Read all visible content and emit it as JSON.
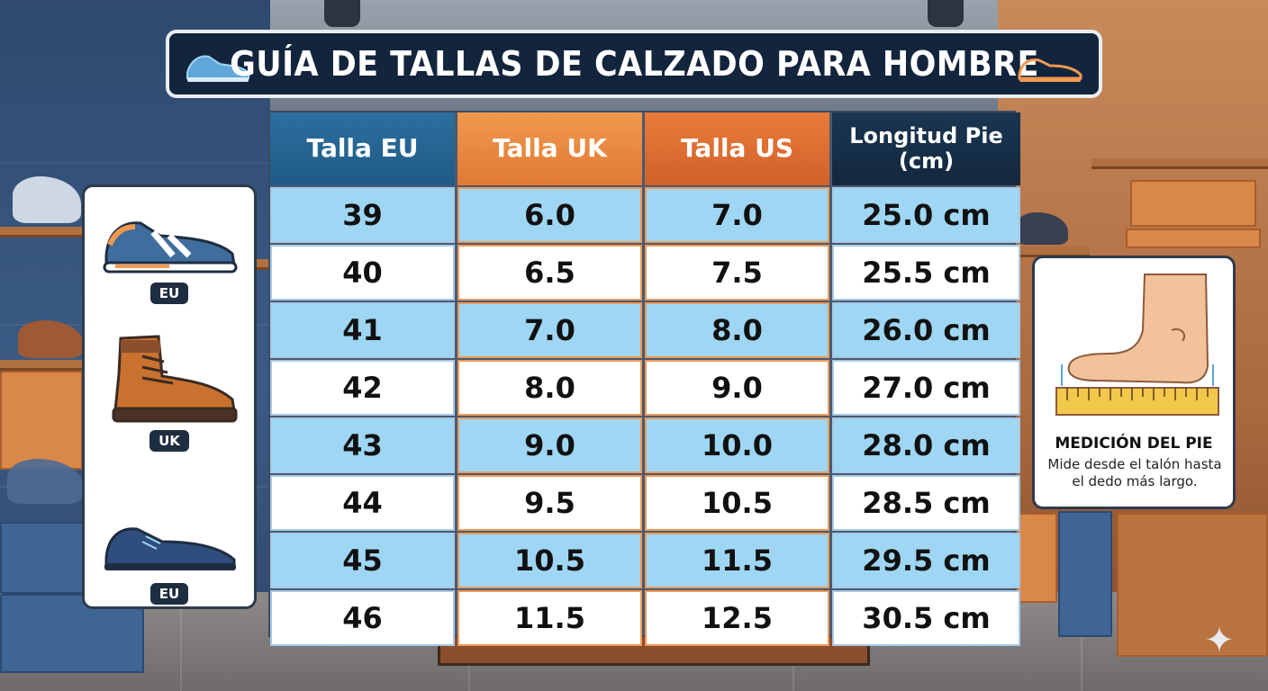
{
  "title": "GUÍA DE TALLAS DE CALZADO PARA HOMBRE",
  "table": {
    "headers": {
      "eu": "Talla EU",
      "uk": "Talla UK",
      "us": "Talla US",
      "length": "Longitud Pie (cm)"
    },
    "rows": [
      {
        "eu": "39",
        "uk": "6.0",
        "us": "7.0",
        "length": "25.0 cm"
      },
      {
        "eu": "40",
        "uk": "6.5",
        "us": "7.5",
        "length": "25.5 cm"
      },
      {
        "eu": "41",
        "uk": "7.0",
        "us": "8.0",
        "length": "26.0 cm"
      },
      {
        "eu": "42",
        "uk": "8.0",
        "us": "9.0",
        "length": "27.0 cm"
      },
      {
        "eu": "43",
        "uk": "9.0",
        "us": "10.0",
        "length": "28.0 cm"
      },
      {
        "eu": "44",
        "uk": "9.5",
        "us": "10.5",
        "length": "28.5 cm"
      },
      {
        "eu": "45",
        "uk": "10.5",
        "us": "11.5",
        "length": "29.5 cm"
      },
      {
        "eu": "46",
        "uk": "11.5",
        "us": "12.5",
        "length": "30.5 cm"
      }
    ]
  },
  "shoe_card": {
    "items": [
      {
        "icon": "sneaker-icon",
        "badge": "EU"
      },
      {
        "icon": "boot-icon",
        "badge": "UK"
      },
      {
        "icon": "dress-shoe-icon",
        "badge": "EU"
      }
    ]
  },
  "measure_card": {
    "icon": "foot-ruler-icon",
    "title": "MEDICIÓN DEL PIE",
    "description": "Mide desde el talón hasta el dedo más largo."
  },
  "colors": {
    "header_eu": "#1f5a86",
    "header_uk": "#e07a33",
    "header_us": "#d2612a",
    "header_length": "#13283f",
    "row_light_blue": "#9ed6f3",
    "row_white": "#ffffff",
    "title_bg": "#13243d"
  }
}
